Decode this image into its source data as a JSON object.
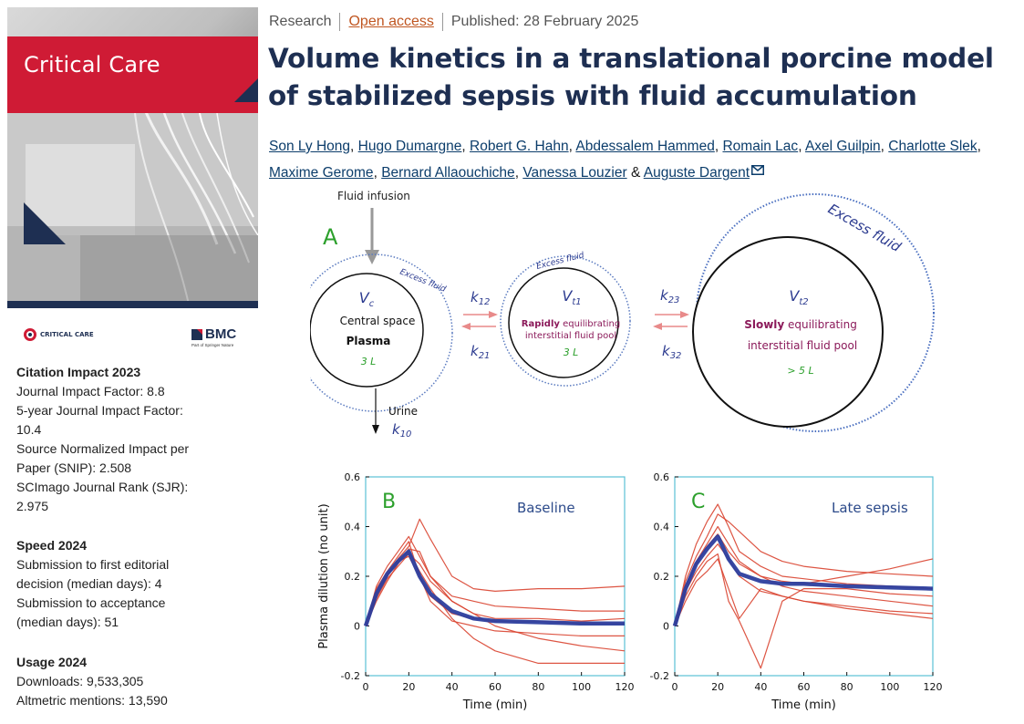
{
  "journal": {
    "cover_title": "Critical Care",
    "logo_cc": "CRITICAL CARE",
    "logo_bmc": "BMC",
    "logo_bmc_sub": "Part of Springer Nature",
    "brand_color": "#cf1b35",
    "navy_color": "#1e2f52"
  },
  "metrics": {
    "citation": {
      "title": "Citation Impact 2023",
      "lines": [
        "Journal Impact Factor: 8.8",
        "5-year Journal Impact Factor:",
        "10.4",
        "Source Normalized Impact per",
        "Paper (SNIP): 2.508",
        "SCImago Journal Rank (SJR):",
        "2.975"
      ]
    },
    "speed": {
      "title": "Speed 2024",
      "lines": [
        "Submission to first editorial",
        "decision (median days): 4",
        "Submission to acceptance",
        "(median days): 51"
      ]
    },
    "usage": {
      "title": "Usage 2024",
      "lines": [
        "Downloads: 9,533,305",
        "Altmetric mentions: 13,590"
      ]
    }
  },
  "article": {
    "type": "Research",
    "access": "Open access",
    "published": "Published: 28 February 2025",
    "title": "Volume kinetics in a translational porcine model of stabilized sepsis with fluid accumulation",
    "authors": [
      "Son Ly Hong",
      "Hugo Dumargne",
      "Robert G. Hahn",
      "Abdessalem Hammed",
      "Romain Lac",
      "Axel Guilpin",
      "Charlotte Slek",
      "Maxime Gerome",
      "Bernard Allaouchiche",
      "Vanessa Louzier",
      "Auguste Dargent"
    ],
    "author_sep": ",",
    "author_last_sep": "&"
  },
  "figure": {
    "panel_a": {
      "label": "A",
      "fluid_infusion": "Fluid infusion",
      "excess_small": "Excess fluid",
      "excess_large": "Excess fluid",
      "vc": "V",
      "vc_sub": "c",
      "central_1": "Central space",
      "central_2": "Plasma",
      "central_vol": "3 L",
      "vt1": "V",
      "vt1_sub": "t1",
      "rapid_bold": "Rapidly",
      "rapid_rest": " equilibrating",
      "rapid_2": "interstitial fluid pool",
      "rapid_vol": "3 L",
      "vt2": "V",
      "vt2_sub": "t2",
      "slow_bold": "Slowly",
      "slow_rest": " equilibrating",
      "slow_2": "interstitial fluid pool",
      "slow_vol": "> 5 L",
      "urine": "Urine",
      "k12": "k",
      "k12_sub": "12",
      "k21": "k",
      "k21_sub": "21",
      "k23": "k",
      "k23_sub": "23",
      "k32": "k",
      "k32_sub": "32",
      "k10": "k",
      "k10_sub": "10"
    },
    "ylabel": "Plasma dilution (no unit)",
    "xlabel": "Time (min)"
  },
  "chart_data": [
    {
      "type": "line",
      "label": "B",
      "title": "Baseline",
      "xlabel": "Time (min)",
      "ylabel": "Plasma dilution (no unit)",
      "xlim": [
        0,
        120
      ],
      "ylim": [
        -0.2,
        0.6
      ],
      "xticks": [
        0,
        20,
        40,
        60,
        80,
        100,
        120
      ],
      "yticks": [
        -0.2,
        0,
        0.2,
        0.4,
        0.6
      ],
      "series": [
        {
          "role": "individual",
          "x": [
            0,
            5,
            10,
            15,
            20,
            25,
            30,
            40,
            50,
            60,
            80,
            100,
            120
          ],
          "y": [
            0,
            0.15,
            0.22,
            0.28,
            0.34,
            0.2,
            0.12,
            0.05,
            0.03,
            0.02,
            0.02,
            0.01,
            0.01
          ]
        },
        {
          "role": "individual",
          "x": [
            0,
            5,
            10,
            15,
            20,
            25,
            30,
            40,
            50,
            60,
            80,
            100,
            120
          ],
          "y": [
            0,
            0.12,
            0.2,
            0.27,
            0.32,
            0.43,
            0.35,
            0.2,
            0.15,
            0.14,
            0.15,
            0.15,
            0.16
          ]
        },
        {
          "role": "individual",
          "x": [
            0,
            5,
            10,
            15,
            20,
            25,
            30,
            40,
            50,
            60,
            80,
            100,
            120
          ],
          "y": [
            0,
            0.14,
            0.21,
            0.26,
            0.3,
            0.22,
            0.15,
            0.03,
            -0.05,
            -0.1,
            -0.15,
            -0.15,
            -0.15
          ]
        },
        {
          "role": "individual",
          "x": [
            0,
            5,
            10,
            15,
            20,
            25,
            30,
            40,
            50,
            60,
            80,
            100,
            120
          ],
          "y": [
            0,
            0.1,
            0.18,
            0.25,
            0.31,
            0.3,
            0.2,
            0.1,
            0.05,
            0.0,
            -0.05,
            -0.08,
            -0.1
          ]
        },
        {
          "role": "individual",
          "x": [
            0,
            5,
            10,
            15,
            20,
            25,
            30,
            40,
            50,
            60,
            80,
            100,
            120
          ],
          "y": [
            0,
            0.16,
            0.24,
            0.3,
            0.36,
            0.28,
            0.2,
            0.12,
            0.1,
            0.08,
            0.07,
            0.06,
            0.06
          ]
        },
        {
          "role": "individual",
          "x": [
            0,
            5,
            10,
            15,
            20,
            25,
            30,
            40,
            50,
            60,
            80,
            100,
            120
          ],
          "y": [
            0,
            0.13,
            0.2,
            0.26,
            0.28,
            0.2,
            0.1,
            0.02,
            0.0,
            -0.02,
            -0.03,
            -0.04,
            -0.04
          ]
        },
        {
          "role": "individual",
          "x": [
            0,
            5,
            10,
            15,
            20,
            25,
            30,
            40,
            50,
            60,
            80,
            100,
            120
          ],
          "y": [
            0,
            0.11,
            0.19,
            0.24,
            0.29,
            0.25,
            0.18,
            0.1,
            0.05,
            0.03,
            0.03,
            0.02,
            0.03
          ]
        },
        {
          "role": "mean",
          "name": "Mean",
          "x": [
            0,
            5,
            10,
            15,
            20,
            25,
            30,
            40,
            50,
            60,
            80,
            100,
            120
          ],
          "y": [
            0,
            0.13,
            0.21,
            0.26,
            0.3,
            0.2,
            0.13,
            0.06,
            0.03,
            0.02,
            0.015,
            0.01,
            0.01
          ]
        }
      ]
    },
    {
      "type": "line",
      "label": "C",
      "title": "Late sepsis",
      "xlabel": "Time (min)",
      "xlim": [
        0,
        120
      ],
      "ylim": [
        -0.2,
        0.6
      ],
      "xticks": [
        0,
        20,
        40,
        60,
        80,
        100,
        120
      ],
      "yticks": [
        -0.2,
        0,
        0.2,
        0.4,
        0.6
      ],
      "series": [
        {
          "role": "individual",
          "x": [
            0,
            5,
            10,
            15,
            20,
            25,
            30,
            40,
            50,
            60,
            80,
            100,
            120
          ],
          "y": [
            0,
            0.2,
            0.33,
            0.42,
            0.49,
            0.4,
            0.3,
            0.24,
            0.2,
            0.19,
            0.17,
            0.16,
            0.15
          ]
        },
        {
          "role": "individual",
          "x": [
            0,
            5,
            10,
            15,
            20,
            25,
            30,
            40,
            50,
            60,
            80,
            100,
            120
          ],
          "y": [
            0,
            0.15,
            0.25,
            0.32,
            0.37,
            0.3,
            0.25,
            0.2,
            0.18,
            0.17,
            0.2,
            0.23,
            0.27
          ]
        },
        {
          "role": "individual",
          "x": [
            0,
            5,
            10,
            15,
            20,
            25,
            30,
            40,
            50,
            60,
            80,
            100,
            120
          ],
          "y": [
            0,
            0.12,
            0.2,
            0.26,
            0.29,
            0.1,
            0.02,
            -0.17,
            0.1,
            0.15,
            0.15,
            0.13,
            0.12
          ]
        },
        {
          "role": "individual",
          "x": [
            0,
            5,
            10,
            15,
            20,
            25,
            30,
            40,
            50,
            60,
            80,
            100,
            120
          ],
          "y": [
            0,
            0.1,
            0.18,
            0.22,
            0.27,
            0.15,
            0.03,
            0.15,
            0.12,
            0.1,
            0.08,
            0.06,
            0.05
          ]
        },
        {
          "role": "individual",
          "x": [
            0,
            5,
            10,
            15,
            20,
            25,
            30,
            40,
            50,
            60,
            80,
            100,
            120
          ],
          "y": [
            0,
            0.18,
            0.28,
            0.36,
            0.45,
            0.42,
            0.38,
            0.3,
            0.26,
            0.24,
            0.22,
            0.21,
            0.2
          ]
        },
        {
          "role": "individual",
          "x": [
            0,
            5,
            10,
            15,
            20,
            25,
            30,
            40,
            50,
            60,
            80,
            100,
            120
          ],
          "y": [
            0,
            0.14,
            0.22,
            0.28,
            0.33,
            0.27,
            0.2,
            0.14,
            0.12,
            0.1,
            0.07,
            0.05,
            0.03
          ]
        },
        {
          "role": "individual",
          "x": [
            0,
            5,
            10,
            15,
            20,
            25,
            30,
            40,
            50,
            60,
            80,
            100,
            120
          ],
          "y": [
            0,
            0.16,
            0.26,
            0.33,
            0.4,
            0.33,
            0.26,
            0.2,
            0.16,
            0.14,
            0.12,
            0.1,
            0.08
          ]
        },
        {
          "role": "mean",
          "name": "Mean",
          "x": [
            0,
            5,
            10,
            15,
            20,
            25,
            30,
            40,
            50,
            60,
            80,
            100,
            120
          ],
          "y": [
            0,
            0.15,
            0.25,
            0.31,
            0.36,
            0.27,
            0.21,
            0.18,
            0.17,
            0.17,
            0.16,
            0.155,
            0.15
          ]
        }
      ]
    }
  ]
}
